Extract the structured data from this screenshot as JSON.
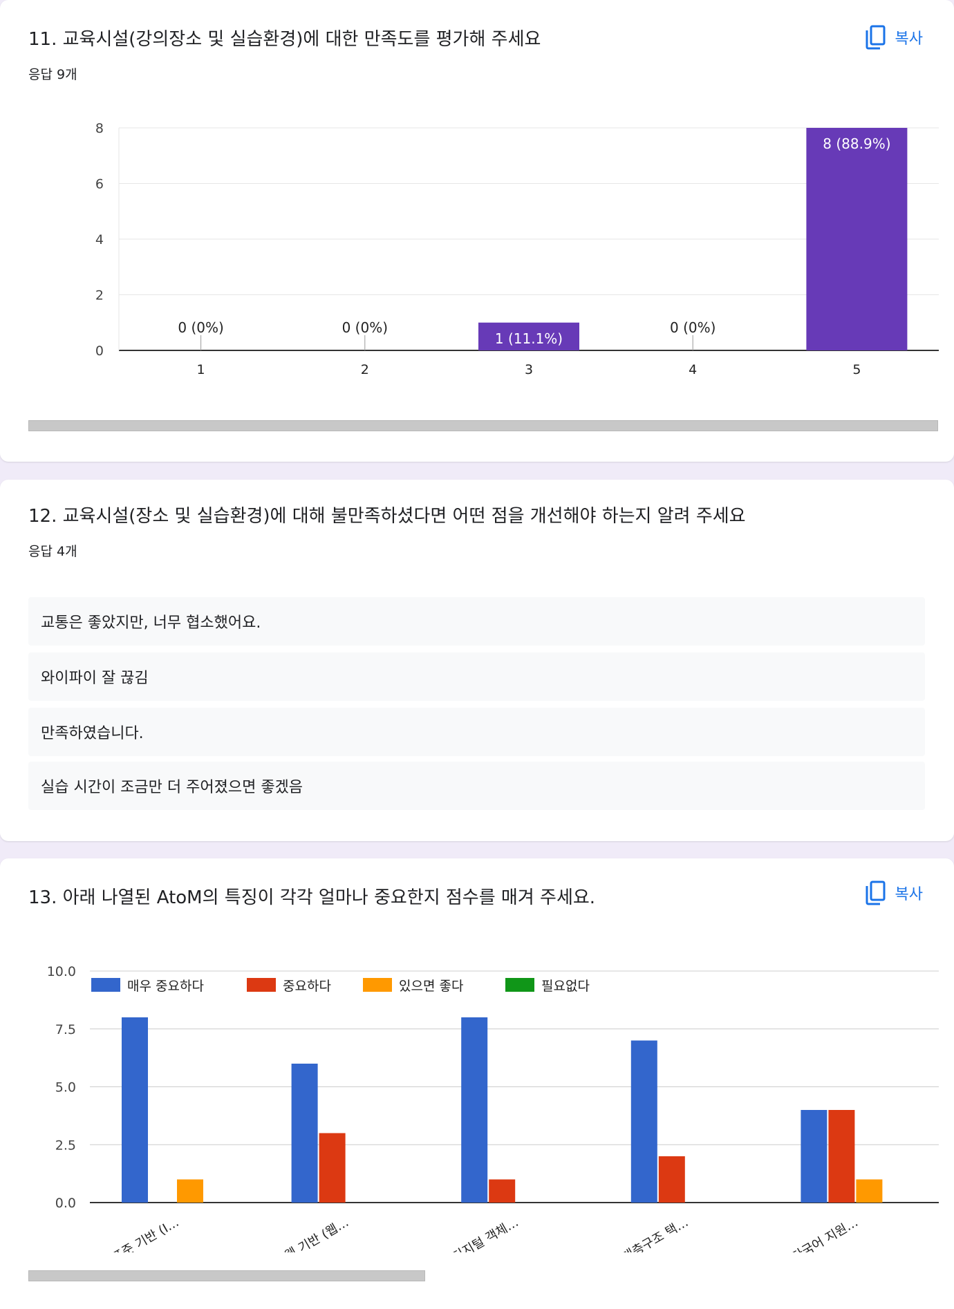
{
  "q11": {
    "title": "11. 교육시설(강의장소 및 실습환경)에 대한 만족도를 평가해 주세요",
    "count": "응답 9개",
    "copy_label": "복사"
  },
  "q12": {
    "title": "12. 교육시설(장소 및 실습환경)에 대해 불만족하셨다면 어떤 점을 개선해야 하는지 알려 주세요",
    "count": "응답 4개",
    "responses": [
      "교통은 좋았지만, 너무 협소했어요.",
      "와이파이 잘 끊김",
      "만족하였습니다.",
      "실습 시간이 조금만 더 주어졌으면 좋겠음"
    ]
  },
  "q13": {
    "title": "13. 아래 나열된 AtoM의 특징이 각각 얼마나 중요한지 점수를 매겨 주세요.",
    "copy_label": "복사"
  },
  "chart_data": [
    {
      "type": "bar",
      "categories": [
        "1",
        "2",
        "3",
        "4",
        "5"
      ],
      "values": [
        0,
        0,
        1,
        0,
        8
      ],
      "data_labels": [
        "0 (0%)",
        "0 (0%)",
        "1 (11.1%)",
        "0 (0%)",
        "8 (88.9%)"
      ],
      "y_ticks": [
        "0",
        "2",
        "4",
        "6",
        "8"
      ],
      "ylim": [
        0,
        8
      ],
      "color": "#673ab7",
      "grid": true
    },
    {
      "type": "bar",
      "categories": [
        "표준 기반 (I…",
        "웹 기반 (웹…",
        "디지털 객체…",
        "계층구조 택…",
        "다국어 지원…"
      ],
      "series": [
        {
          "name": "매우 중요하다",
          "values": [
            8,
            6,
            8,
            7,
            4
          ],
          "color": "#3366cc"
        },
        {
          "name": "중요하다",
          "values": [
            0,
            3,
            1,
            2,
            4
          ],
          "color": "#dc3912"
        },
        {
          "name": "있으면 좋다",
          "values": [
            1,
            0,
            0,
            0,
            1
          ],
          "color": "#ff9900"
        },
        {
          "name": "필요없다",
          "values": [
            0,
            0,
            0,
            0,
            0
          ],
          "color": "#109618"
        }
      ],
      "y_ticks": [
        "0.0",
        "2.5",
        "5.0",
        "7.5",
        "10.0"
      ],
      "ylim": [
        0,
        10
      ],
      "legend": "top",
      "grid": true
    }
  ]
}
